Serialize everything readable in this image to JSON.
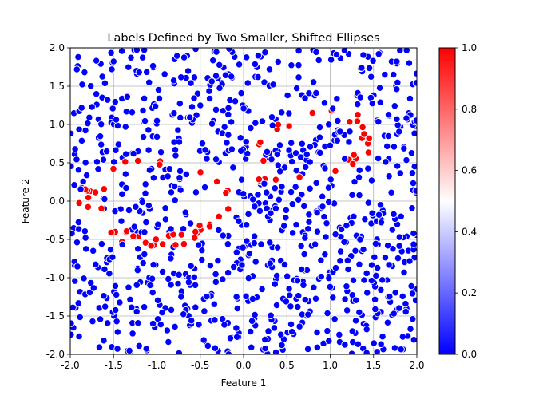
{
  "chart_data": {
    "type": "scatter",
    "title": "Labels Defined by Two Smaller, Shifted Ellipses",
    "xlabel": "Feature 1",
    "ylabel": "Feature 2",
    "xlim": [
      -2.0,
      2.0
    ],
    "ylim": [
      -2.0,
      2.0
    ],
    "xticks": [
      "-2.0",
      "-1.5",
      "-1.0",
      "-0.5",
      "0.0",
      "0.5",
      "1.0",
      "1.5",
      "2.0"
    ],
    "yticks": [
      "-2.0",
      "-1.5",
      "-1.0",
      "-0.5",
      "0.0",
      "0.5",
      "1.0",
      "1.5",
      "2.0"
    ],
    "grid": true,
    "legend": "none",
    "colormap": "bwr",
    "colorbar": {
      "range": [
        0.0,
        1.0
      ],
      "ticks": [
        "0.0",
        "0.2",
        "0.4",
        "0.6",
        "0.8",
        "1.0"
      ],
      "low_color": "#0000ff",
      "mid_color": "#ffffff",
      "high_color": "#ff0000"
    },
    "sample_count": 1000,
    "marker_edge_color": "#ffffff",
    "label_colors": {
      "0": "#0000ff",
      "1": "#ff0000"
    },
    "regions": [
      {
        "label": 1,
        "center": [
          -1.0,
          0.0
        ],
        "radius_x": 0.9,
        "radius_y": 0.6,
        "rotation_deg": 0
      },
      {
        "label": 1,
        "center": [
          0.8,
          0.7
        ],
        "radius_x": 0.8,
        "radius_y": 0.45,
        "rotation_deg": 20
      }
    ],
    "band": {
      "inner": 0.72,
      "outer": 1.0
    }
  }
}
